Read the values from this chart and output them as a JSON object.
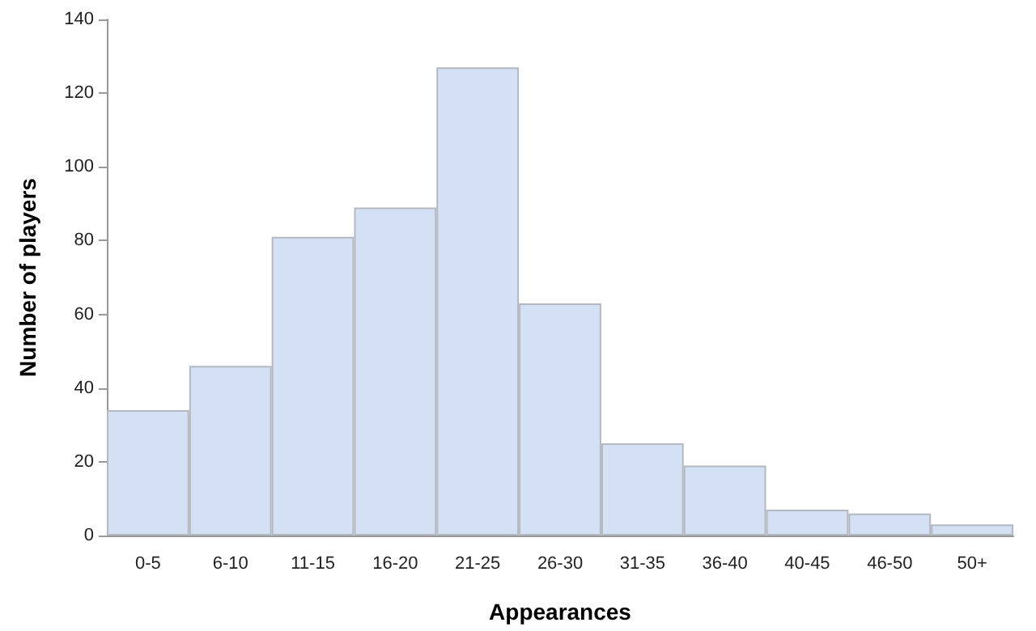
{
  "chart_data": {
    "type": "bar",
    "xlabel": "Appearances",
    "ylabel": "Number of players",
    "categories": [
      "0-5",
      "6-10",
      "11-15",
      "16-20",
      "21-25",
      "26-30",
      "31-35",
      "36-40",
      "40-45",
      "46-50",
      "50+"
    ],
    "values": [
      34,
      46,
      81,
      89,
      127,
      63,
      25,
      19,
      7,
      6,
      3
    ],
    "color": "#d4e0f3",
    "ylim": [
      0,
      140
    ],
    "yticks": [
      0,
      20,
      40,
      60,
      80,
      100,
      120,
      140
    ],
    "grid": false
  }
}
